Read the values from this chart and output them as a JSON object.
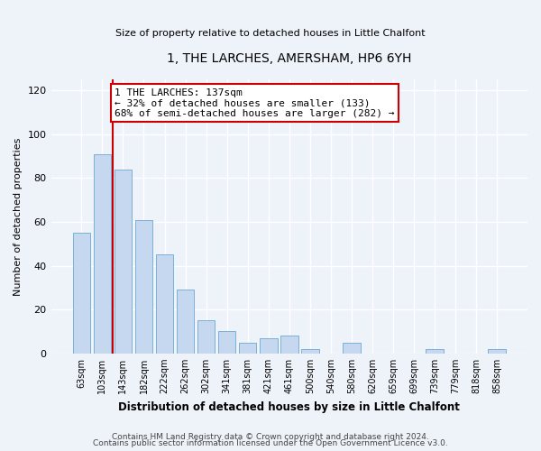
{
  "title": "1, THE LARCHES, AMERSHAM, HP6 6YH",
  "subtitle": "Size of property relative to detached houses in Little Chalfont",
  "xlabel": "Distribution of detached houses by size in Little Chalfont",
  "ylabel": "Number of detached properties",
  "footer_line1": "Contains HM Land Registry data © Crown copyright and database right 2024.",
  "footer_line2": "Contains public sector information licensed under the Open Government Licence v3.0.",
  "bar_labels": [
    "63sqm",
    "103sqm",
    "143sqm",
    "182sqm",
    "222sqm",
    "262sqm",
    "302sqm",
    "341sqm",
    "381sqm",
    "421sqm",
    "461sqm",
    "500sqm",
    "540sqm",
    "580sqm",
    "620sqm",
    "659sqm",
    "699sqm",
    "739sqm",
    "779sqm",
    "818sqm",
    "858sqm"
  ],
  "bar_values": [
    55,
    91,
    84,
    61,
    45,
    29,
    15,
    10,
    5,
    7,
    8,
    2,
    0,
    5,
    0,
    0,
    0,
    2,
    0,
    0,
    2
  ],
  "bar_color": "#c5d8f0",
  "bar_edge_color": "#7ab0d8",
  "ylim": [
    0,
    125
  ],
  "yticks": [
    0,
    20,
    40,
    60,
    80,
    100,
    120
  ],
  "property_line_color": "#cc0000",
  "annotation_title": "1 THE LARCHES: 137sqm",
  "annotation_line1": "← 32% of detached houses are smaller (133)",
  "annotation_line2": "68% of semi-detached houses are larger (282) →",
  "annotation_box_color": "#ffffff",
  "annotation_box_edge_color": "#cc0000",
  "bg_color": "#eef2f9"
}
